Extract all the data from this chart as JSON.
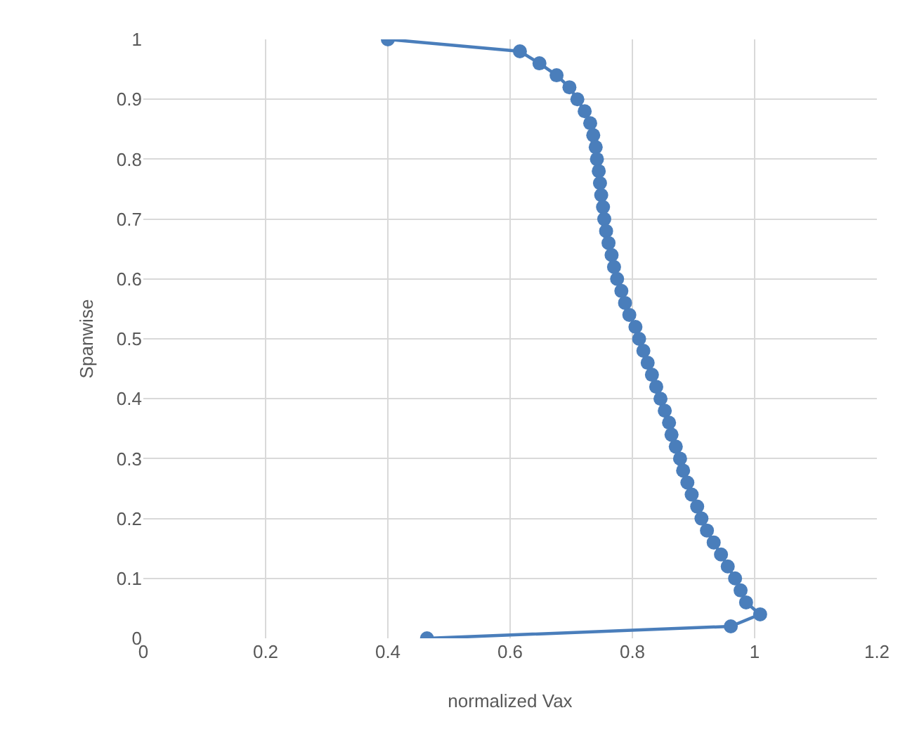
{
  "chart_data": {
    "type": "line",
    "xlabel": "normalized Vax",
    "ylabel": "Spanwise",
    "x": [
      0.4,
      0.616,
      0.648,
      0.676,
      0.697,
      0.71,
      0.722,
      0.731,
      0.736,
      0.74,
      0.742,
      0.745,
      0.747,
      0.749,
      0.752,
      0.754,
      0.757,
      0.761,
      0.766,
      0.77,
      0.775,
      0.782,
      0.788,
      0.795,
      0.805,
      0.811,
      0.818,
      0.825,
      0.832,
      0.839,
      0.846,
      0.853,
      0.86,
      0.864,
      0.871,
      0.878,
      0.883,
      0.89,
      0.897,
      0.906,
      0.913,
      0.922,
      0.933,
      0.945,
      0.956,
      0.968,
      0.977,
      0.986,
      1.009,
      0.961,
      0.464
    ],
    "series": [
      {
        "color": "#4a7ebb",
        "values": [
          1,
          0.98,
          0.96,
          0.94,
          0.92,
          0.9,
          0.88,
          0.86,
          0.84,
          0.82,
          0.8,
          0.78,
          0.76,
          0.74,
          0.72,
          0.7,
          0.68,
          0.66,
          0.64,
          0.62,
          0.6,
          0.58,
          0.56,
          0.54,
          0.52,
          0.5,
          0.48,
          0.46,
          0.44,
          0.42,
          0.4,
          0.38,
          0.36,
          0.34,
          0.32,
          0.3,
          0.28,
          0.26,
          0.24,
          0.22,
          0.2,
          0.18,
          0.16,
          0.14,
          0.12,
          0.1,
          0.08,
          0.06,
          0.04,
          0.02,
          0
        ]
      }
    ],
    "xlim": [
      0,
      1.2
    ],
    "xticks": [
      0,
      0.2,
      0.4,
      0.6,
      0.8,
      1,
      1.2
    ],
    "ylim": [
      0,
      1
    ],
    "yticks": [
      0,
      0.1,
      0.2,
      0.3,
      0.4,
      0.5,
      0.6,
      0.7,
      0.8,
      0.9,
      1
    ],
    "grid": true,
    "marker": "circle",
    "line_style": "solid"
  }
}
